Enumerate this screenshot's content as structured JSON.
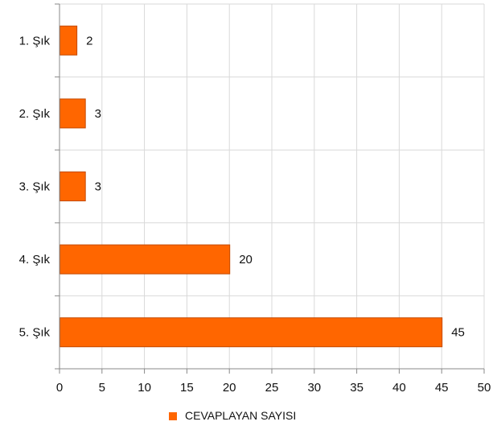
{
  "chart_data": {
    "type": "bar",
    "orientation": "horizontal",
    "categories": [
      "1. Şık",
      "2. Şık",
      "3. Şık",
      "4. Şık",
      "5. Şık"
    ],
    "series": [
      {
        "name": "CEVAPLAYAN SAYISI",
        "values": [
          2,
          3,
          3,
          20,
          45
        ],
        "color": "#ff6600"
      }
    ],
    "xlim": [
      0,
      50
    ],
    "x_ticks": [
      0,
      5,
      10,
      15,
      20,
      25,
      30,
      35,
      40,
      45,
      50
    ],
    "grid": true,
    "data_labels": true,
    "legend": {
      "position": "bottom",
      "items": [
        "CEVAPLAYAN SAYISI"
      ]
    },
    "colors": {
      "bar_fill": "#ff6600",
      "bar_stroke": "#c44a00",
      "grid": "#d9d9d9",
      "axis": "#888888"
    }
  }
}
